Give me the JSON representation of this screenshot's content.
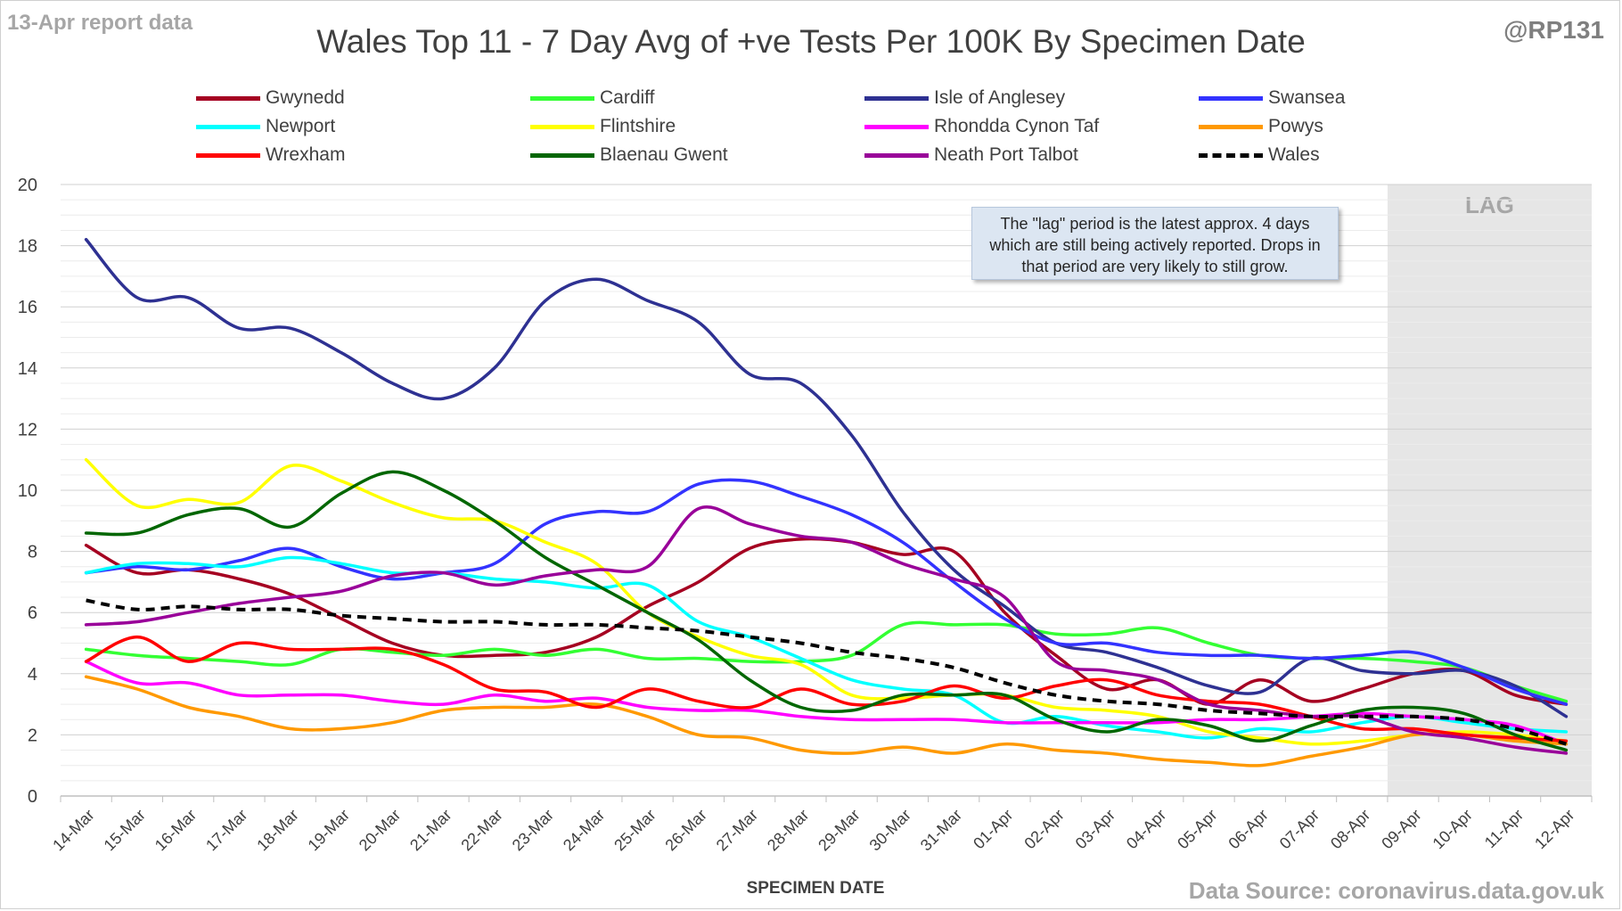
{
  "header": {
    "report_date": "13-Apr report data",
    "handle": "@RP131",
    "title": "Wales Top 11 - 7 Day Avg of +ve Tests Per 100K By Specimen Date",
    "source": "Data Source: coronavirus.data.gov.uk"
  },
  "annotation": {
    "text": "The \"lag\" period is the latest approx. 4 days which are still being actively reported.  Drops in that period are very likely to still grow."
  },
  "chart_data": {
    "type": "line",
    "title": "Wales Top 11 - 7 Day Avg of +ve Tests Per 100K By Specimen Date",
    "xlabel": "SPECIMEN DATE",
    "ylabel": "",
    "ylim": [
      0,
      20
    ],
    "yticks": [
      0,
      2,
      4,
      6,
      8,
      10,
      12,
      14,
      16,
      18,
      20
    ],
    "grid": true,
    "legend_position": "top",
    "lag_label": "LAG",
    "lag_start": "09-Apr",
    "lag_color": "#e6e6e6",
    "categories": [
      "14-Mar",
      "15-Mar",
      "16-Mar",
      "17-Mar",
      "18-Mar",
      "19-Mar",
      "20-Mar",
      "21-Mar",
      "22-Mar",
      "23-Mar",
      "24-Mar",
      "25-Mar",
      "26-Mar",
      "27-Mar",
      "28-Mar",
      "29-Mar",
      "30-Mar",
      "31-Mar",
      "01-Apr",
      "02-Apr",
      "03-Apr",
      "04-Apr",
      "05-Apr",
      "06-Apr",
      "07-Apr",
      "08-Apr",
      "09-Apr",
      "10-Apr",
      "11-Apr",
      "12-Apr"
    ],
    "series": [
      {
        "name": "Gwynedd",
        "color": "#a50021",
        "dashed": false,
        "values": [
          8.2,
          7.3,
          7.4,
          7.1,
          6.6,
          5.8,
          5.0,
          4.6,
          4.6,
          4.7,
          5.2,
          6.2,
          7.0,
          8.1,
          8.4,
          8.3,
          7.9,
          8.0,
          6.0,
          4.6,
          3.5,
          3.8,
          3.0,
          3.8,
          3.1,
          3.5,
          4.0,
          4.1,
          3.3,
          3.0
        ]
      },
      {
        "name": "Cardiff",
        "color": "#33ff33",
        "dashed": false,
        "values": [
          4.8,
          4.6,
          4.5,
          4.4,
          4.3,
          4.8,
          4.7,
          4.6,
          4.8,
          4.6,
          4.8,
          4.5,
          4.5,
          4.4,
          4.4,
          4.6,
          5.6,
          5.6,
          5.6,
          5.3,
          5.3,
          5.5,
          5.0,
          4.6,
          4.5,
          4.5,
          4.4,
          4.2,
          3.6,
          3.1
        ]
      },
      {
        "name": "Isle of Anglesey",
        "color": "#2e3192",
        "dashed": false,
        "values": [
          18.2,
          16.3,
          16.3,
          15.3,
          15.3,
          14.5,
          13.5,
          13.0,
          14.0,
          16.2,
          16.9,
          16.2,
          15.5,
          13.8,
          13.5,
          11.8,
          9.3,
          7.4,
          6.2,
          5.0,
          4.7,
          4.2,
          3.6,
          3.4,
          4.5,
          4.1,
          4.0,
          4.1,
          3.6,
          2.6
        ]
      },
      {
        "name": "Swansea",
        "color": "#3333ff",
        "dashed": false,
        "values": [
          7.3,
          7.5,
          7.4,
          7.7,
          8.1,
          7.5,
          7.1,
          7.3,
          7.6,
          8.9,
          9.3,
          9.3,
          10.2,
          10.3,
          9.8,
          9.2,
          8.3,
          7.0,
          5.8,
          5.0,
          5.0,
          4.7,
          4.6,
          4.6,
          4.5,
          4.6,
          4.7,
          4.2,
          3.5,
          3.0
        ]
      },
      {
        "name": "Newport",
        "color": "#00ffff",
        "dashed": false,
        "values": [
          7.3,
          7.6,
          7.6,
          7.5,
          7.8,
          7.6,
          7.3,
          7.3,
          7.1,
          7.0,
          6.8,
          6.9,
          5.7,
          5.2,
          4.5,
          3.8,
          3.5,
          3.3,
          2.4,
          2.6,
          2.3,
          2.1,
          1.9,
          2.2,
          2.1,
          2.4,
          2.6,
          2.4,
          2.2,
          2.1
        ]
      },
      {
        "name": "Flintshire",
        "color": "#ffff00",
        "dashed": false,
        "values": [
          11.0,
          9.5,
          9.7,
          9.6,
          10.8,
          10.3,
          9.6,
          9.1,
          9.0,
          8.3,
          7.6,
          6.0,
          5.2,
          4.6,
          4.3,
          3.3,
          3.2,
          3.3,
          3.3,
          2.9,
          2.8,
          2.6,
          2.1,
          1.9,
          1.7,
          1.8,
          2.0,
          2.1,
          2.0,
          1.8
        ]
      },
      {
        "name": "Rhondda Cynon Taf",
        "color": "#ff00ff",
        "dashed": false,
        "values": [
          4.4,
          3.7,
          3.7,
          3.3,
          3.3,
          3.3,
          3.1,
          3.0,
          3.3,
          3.1,
          3.2,
          2.9,
          2.8,
          2.8,
          2.6,
          2.5,
          2.5,
          2.5,
          2.4,
          2.4,
          2.4,
          2.4,
          2.5,
          2.5,
          2.6,
          2.7,
          2.6,
          2.5,
          2.3,
          1.7
        ]
      },
      {
        "name": "Powys",
        "color": "#ff9900",
        "dashed": false,
        "values": [
          3.9,
          3.5,
          2.9,
          2.6,
          2.2,
          2.2,
          2.4,
          2.8,
          2.9,
          2.9,
          3.0,
          2.6,
          2.0,
          1.9,
          1.5,
          1.4,
          1.6,
          1.4,
          1.7,
          1.5,
          1.4,
          1.2,
          1.1,
          1.0,
          1.3,
          1.6,
          2.0,
          2.0,
          1.8,
          1.7
        ]
      },
      {
        "name": "Wrexham",
        "color": "#ff0000",
        "dashed": false,
        "values": [
          4.4,
          5.2,
          4.4,
          5.0,
          4.8,
          4.8,
          4.8,
          4.3,
          3.5,
          3.4,
          2.9,
          3.5,
          3.1,
          2.9,
          3.5,
          3.0,
          3.1,
          3.6,
          3.2,
          3.6,
          3.8,
          3.3,
          3.1,
          3.0,
          2.6,
          2.2,
          2.2,
          2.0,
          1.9,
          1.8
        ]
      },
      {
        "name": "Blaenau Gwent",
        "color": "#006600",
        "dashed": false,
        "values": [
          8.6,
          8.6,
          9.2,
          9.4,
          8.8,
          9.9,
          10.6,
          10.0,
          9.0,
          7.8,
          6.9,
          6.0,
          5.1,
          3.8,
          2.9,
          2.8,
          3.3,
          3.3,
          3.3,
          2.5,
          2.1,
          2.5,
          2.3,
          1.8,
          2.3,
          2.8,
          2.9,
          2.7,
          2.0,
          1.5
        ]
      },
      {
        "name": "Neath Port Talbot",
        "color": "#990099",
        "dashed": false,
        "values": [
          5.6,
          5.7,
          6.0,
          6.3,
          6.5,
          6.7,
          7.2,
          7.3,
          6.9,
          7.2,
          7.4,
          7.5,
          9.4,
          8.9,
          8.5,
          8.3,
          7.6,
          7.1,
          6.5,
          4.4,
          4.1,
          3.8,
          3.0,
          2.8,
          2.6,
          2.6,
          2.1,
          1.9,
          1.6,
          1.4
        ]
      },
      {
        "name": "Wales",
        "color": "#000000",
        "dashed": true,
        "values": [
          6.4,
          6.1,
          6.2,
          6.1,
          6.1,
          5.9,
          5.8,
          5.7,
          5.7,
          5.6,
          5.6,
          5.5,
          5.4,
          5.2,
          5.0,
          4.7,
          4.5,
          4.2,
          3.7,
          3.3,
          3.1,
          3.0,
          2.8,
          2.7,
          2.6,
          2.6,
          2.6,
          2.5,
          2.2,
          1.7
        ]
      }
    ]
  }
}
